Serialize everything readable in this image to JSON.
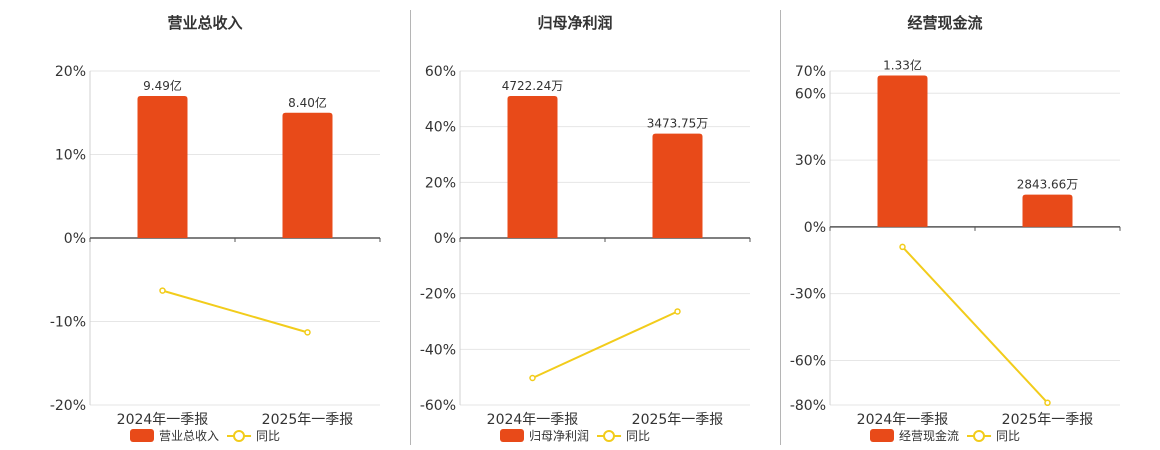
{
  "colors": {
    "bar": "#e84a19",
    "line": "#f2cc1b",
    "grid": "#e6e6e6",
    "axis": "#555555",
    "divider": "#b5b5b5"
  },
  "chart_data": [
    {
      "type": "bar+line",
      "title": "营业总收入",
      "categories": [
        "2024年一季报",
        "2025年一季报"
      ],
      "yticks": [
        "20%",
        "10%",
        "0%",
        "-10%",
        "-20%"
      ],
      "ylim": [
        -20,
        20
      ],
      "series": [
        {
          "name": "营业总收入",
          "type": "bar",
          "values": [
            17,
            15
          ],
          "labels": [
            "9.49亿",
            "8.40亿"
          ]
        },
        {
          "name": "同比",
          "type": "line",
          "values": [
            -6.3,
            -11.3
          ]
        }
      ],
      "legend": "bottom"
    },
    {
      "type": "bar+line",
      "title": "归母净利润",
      "categories": [
        "2024年一季报",
        "2025年一季报"
      ],
      "yticks": [
        "60%",
        "40%",
        "20%",
        "0%",
        "-20%",
        "-40%",
        "-60%"
      ],
      "ylim": [
        -60,
        60
      ],
      "series": [
        {
          "name": "归母净利润",
          "type": "bar",
          "values": [
            51,
            37.5
          ],
          "labels": [
            "4722.24万",
            "3473.75万"
          ]
        },
        {
          "name": "同比",
          "type": "line",
          "values": [
            -50.3,
            -26.4
          ]
        }
      ],
      "legend": "bottom"
    },
    {
      "type": "bar+line",
      "title": "经营现金流",
      "categories": [
        "2024年一季报",
        "2025年一季报"
      ],
      "yticks": [
        "70%",
        "60%",
        "30%",
        "0%",
        "-30%",
        "-60%",
        "-80%"
      ],
      "ylim": [
        -80,
        70
      ],
      "series": [
        {
          "name": "经营现金流",
          "type": "bar",
          "values": [
            68,
            14.5
          ],
          "labels": [
            "1.33亿",
            "2843.66万"
          ]
        },
        {
          "name": "同比",
          "type": "line",
          "values": [
            -9,
            -79
          ]
        }
      ],
      "legend": "bottom"
    }
  ]
}
